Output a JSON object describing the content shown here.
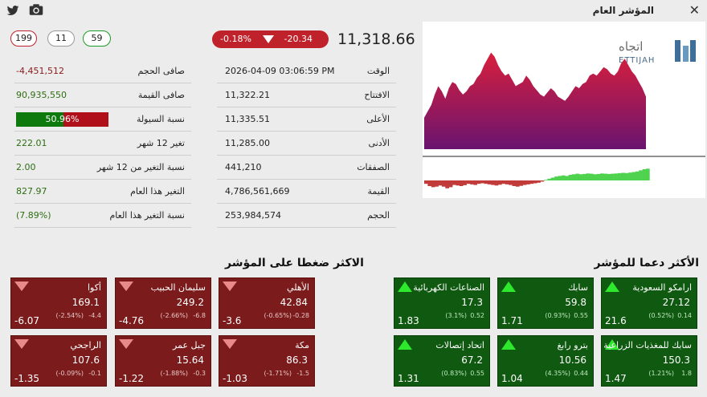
{
  "window": {
    "title": "المؤشر العام",
    "close_icon": "✕"
  },
  "counters": {
    "declining": "199",
    "unchanged": "11",
    "advancing": "59"
  },
  "index": {
    "value": "11,318.66",
    "change_points": "-20.34",
    "change_percent": "-0.18%"
  },
  "logo": {
    "arabic": "اتجاه",
    "latin": "ETTIJAH"
  },
  "left_stats": [
    {
      "label": "صافى الحجم",
      "value": "-4,451,512",
      "tone": "neg"
    },
    {
      "label": "صافى القيمة",
      "value": "90,935,550",
      "tone": "pos"
    },
    {
      "label": "نسبة السيولة",
      "value": "50.96%",
      "tone": "bar",
      "fraction": 0.5096
    },
    {
      "label": "تغير 12 شهر",
      "value": "222.01",
      "tone": "pos"
    },
    {
      "label": "نسبة التغير من 12 شهر",
      "value": "2.00",
      "tone": "pos"
    },
    {
      "label": "التغير هذا العام",
      "value": "827.97",
      "tone": "pos"
    },
    {
      "label": "نسبة التغير هذا العام",
      "value": "(7.89%)",
      "tone": "pos"
    }
  ],
  "mid_stats": [
    {
      "label": "الوقت",
      "value": "2026-04-09  03:06:59 PM"
    },
    {
      "label": "الافتتاح",
      "value": "11,322.21"
    },
    {
      "label": "الأعلى",
      "value": "11,335.51"
    },
    {
      "label": "الأدنى",
      "value": "11,285.00"
    },
    {
      "label": "الصفقات",
      "value": "441,210"
    },
    {
      "label": "القيمة",
      "value": "4,786,561,669"
    },
    {
      "label": "الحجم",
      "value": "253,984,574"
    }
  ],
  "sections": {
    "pressure_title": "الاكثر ضغطا على المؤشر",
    "support_title": "الأكثر دعما للمؤشر"
  },
  "pressure_tiles": [
    {
      "name": "الأهلي",
      "price": "42.84",
      "change": "-0.28",
      "percent": "(-0.65%)",
      "points": "-3.6"
    },
    {
      "name": "سليمان الحبيب",
      "price": "249.2",
      "change": "-6.8",
      "percent": "(-2.66%)",
      "points": "-4.76"
    },
    {
      "name": "أكوا",
      "price": "169.1",
      "change": "-4.4",
      "percent": "(-2.54%)",
      "points": "-6.07"
    },
    {
      "name": "مكة",
      "price": "86.3",
      "change": "-1.5",
      "percent": "(-1.71%)",
      "points": "-1.03"
    },
    {
      "name": "جبل عمر",
      "price": "15.64",
      "change": "-0.3",
      "percent": "(-1.88%)",
      "points": "-1.22"
    },
    {
      "name": "الراجحي",
      "price": "107.6",
      "change": "-0.1",
      "percent": "(-0.09%)",
      "points": "-1.35"
    }
  ],
  "support_tiles": [
    {
      "name": "سابك",
      "price": "59.8",
      "change": "0.55",
      "percent": "(0.93%)",
      "points": "1.71"
    },
    {
      "name": "الصناعات الكهربائية",
      "price": "17.3",
      "change": "0.52",
      "percent": "(3.1%)",
      "points": "1.83"
    },
    {
      "name": "ارامكو السعودية",
      "price": "27.12",
      "change": "0.14",
      "percent": "(0.52%)",
      "points": "21.6"
    },
    {
      "name": "بترو رابغ",
      "price": "10.56",
      "change": "0.44",
      "percent": "(4.35%)",
      "points": "1.04"
    },
    {
      "name": "اتحاد إتصالات",
      "price": "67.2",
      "change": "0.55",
      "percent": "(0.83%)",
      "points": "1.31"
    },
    {
      "name": "سابك للمغذيات الزراعية",
      "price": "150.3",
      "change": "1.8",
      "percent": "(1.21%)",
      "points": "1.47"
    }
  ],
  "colors": {
    "down": "#7c1b1b",
    "up": "#0f5a10",
    "accent_red": "#c0222b",
    "accent_green": "#1a9a24"
  },
  "chart_data": {
    "type": "area",
    "series": [
      {
        "values": [
          0.3,
          0.36,
          0.42,
          0.52,
          0.6,
          0.55,
          0.48,
          0.58,
          0.64,
          0.62,
          0.56,
          0.52,
          0.55,
          0.6,
          0.62,
          0.68,
          0.72,
          0.8,
          0.86,
          0.92,
          0.88,
          0.8,
          0.74,
          0.7,
          0.72,
          0.66,
          0.6,
          0.62,
          0.64,
          0.7,
          0.66,
          0.6,
          0.56,
          0.52,
          0.5,
          0.54,
          0.58,
          0.55,
          0.5,
          0.48,
          0.46,
          0.5,
          0.55,
          0.6,
          0.58,
          0.62,
          0.64,
          0.7,
          0.72,
          0.7,
          0.74,
          0.78,
          0.76,
          0.72,
          0.7,
          0.74,
          0.82,
          0.86,
          0.8,
          0.74,
          0.7,
          0.64,
          0.58,
          0.5
        ]
      },
      {
        "values": [
          -0.3,
          -0.5,
          -0.6,
          -0.55,
          -0.45,
          -0.55,
          -0.7,
          -0.6,
          -0.4,
          -0.45,
          -0.5,
          -0.42,
          -0.3,
          -0.35,
          -0.4,
          -0.3,
          -0.25,
          -0.3,
          -0.35,
          -0.4,
          -0.45,
          -0.38,
          -0.3,
          -0.35,
          -0.4,
          -0.5,
          -0.55,
          -0.48,
          -0.4,
          -0.35,
          -0.3,
          -0.25,
          -0.2,
          -0.1,
          0.05,
          0.15,
          0.25,
          0.35,
          0.4,
          0.45,
          0.4,
          0.5,
          0.55,
          0.6,
          0.55,
          0.58,
          0.62,
          0.6,
          0.55,
          0.58,
          0.62,
          0.6,
          0.58,
          0.6,
          0.62,
          0.65,
          0.68,
          0.66,
          0.7,
          0.75,
          0.8,
          0.9,
          1.0,
          1.05
        ]
      }
    ]
  }
}
